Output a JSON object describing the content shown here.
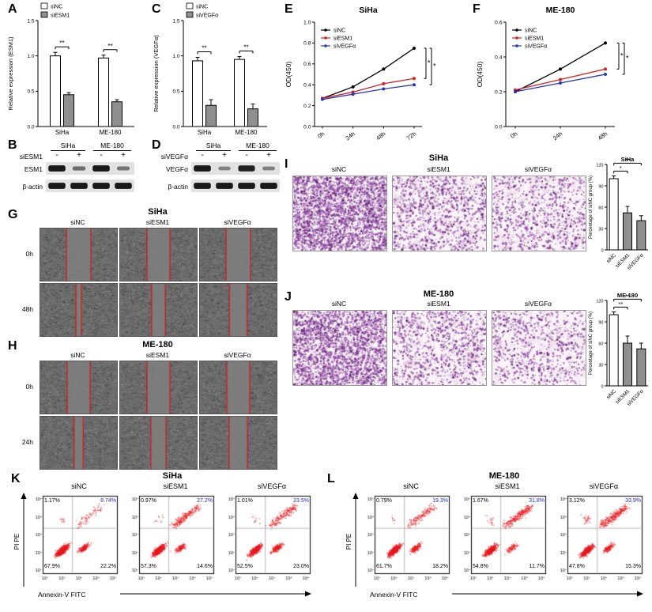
{
  "panels": {
    "A": {
      "letter": "A",
      "ylabel": "Relative expression (ESM1)",
      "ylim": [
        0,
        1.5
      ],
      "yticks": [
        "0.0",
        "0.5",
        "1.0",
        "1.5"
      ],
      "categories": [
        "SiHa",
        "ME-180"
      ],
      "legend": [
        "siNC",
        "siESM1"
      ],
      "series": [
        {
          "name": "siNC",
          "fill": "#ffffff",
          "values": [
            1.0,
            0.97
          ],
          "errors": [
            0.05,
            0.04
          ]
        },
        {
          "name": "siESM1",
          "fill": "#8f8f8f",
          "values": [
            0.45,
            0.35
          ],
          "errors": [
            0.03,
            0.03
          ]
        }
      ],
      "sig": [
        "**",
        "**"
      ]
    },
    "B": {
      "letter": "B",
      "treatment": "siESM1",
      "cells": [
        "SiHa",
        "ME-180"
      ],
      "lanes": [
        "-",
        "+",
        "-",
        "+"
      ],
      "rows": [
        "ESM1",
        "β-actin"
      ],
      "bands": [
        [
          0.95,
          0.4,
          0.95,
          0.35
        ],
        [
          0.95,
          0.95,
          0.95,
          0.95
        ]
      ]
    },
    "C": {
      "letter": "C",
      "ylabel": "Relative expression (VEGFα)",
      "ylim": [
        0,
        1.5
      ],
      "yticks": [
        "0.0",
        "0.5",
        "1.0",
        "1.5"
      ],
      "categories": [
        "SiHa",
        "ME-180"
      ],
      "legend": [
        "siNC",
        "siVEGFα"
      ],
      "series": [
        {
          "name": "siNC",
          "fill": "#ffffff",
          "values": [
            0.93,
            0.95
          ],
          "errors": [
            0.05,
            0.04
          ]
        },
        {
          "name": "siVEGFα",
          "fill": "#8f8f8f",
          "values": [
            0.3,
            0.25
          ],
          "errors": [
            0.08,
            0.07
          ]
        }
      ],
      "sig": [
        "**",
        "**"
      ]
    },
    "D": {
      "letter": "D",
      "treatment": "siVEGFα",
      "cells": [
        "SiHa",
        "ME-180"
      ],
      "lanes": [
        "-",
        "+",
        "-",
        "+"
      ],
      "rows": [
        "VEGFα",
        "β-actin"
      ],
      "bands": [
        [
          0.95,
          0.28,
          0.9,
          0.3
        ],
        [
          0.95,
          0.95,
          0.95,
          0.95
        ]
      ]
    },
    "E": {
      "letter": "E",
      "title": "SiHa",
      "ylabel": "OD(450)",
      "ylim": [
        0,
        1.0
      ],
      "yticks": [
        "0.0",
        "0.2",
        "0.4",
        "0.6",
        "0.8",
        "1.0"
      ],
      "x": [
        "0h",
        "24h",
        "48h",
        "72h"
      ],
      "series": [
        {
          "name": "siNC",
          "color": "#000000",
          "values": [
            0.27,
            0.38,
            0.55,
            0.75
          ]
        },
        {
          "name": "siESM1",
          "color": "#d42020",
          "values": [
            0.27,
            0.33,
            0.41,
            0.46
          ]
        },
        {
          "name": "siVEGFα",
          "color": "#2438b8",
          "values": [
            0.26,
            0.31,
            0.36,
            0.4
          ]
        }
      ],
      "sig": [
        "*",
        "*"
      ]
    },
    "F": {
      "letter": "F",
      "title": "ME-180",
      "ylabel": "OD(450)",
      "ylim": [
        0,
        0.6
      ],
      "yticks": [
        "0.0",
        "0.2",
        "0.4",
        "0.6"
      ],
      "x": [
        "0h",
        "24h",
        "48h"
      ],
      "series": [
        {
          "name": "siNC",
          "color": "#000000",
          "values": [
            0.2,
            0.33,
            0.48
          ]
        },
        {
          "name": "siESM1",
          "color": "#d42020",
          "values": [
            0.21,
            0.27,
            0.33
          ]
        },
        {
          "name": "siVEGFα",
          "color": "#2438b8",
          "values": [
            0.2,
            0.25,
            0.3
          ]
        }
      ],
      "sig": [
        "*",
        "*"
      ]
    },
    "G": {
      "letter": "G",
      "title": "SiHa",
      "columns": [
        "siNC",
        "siESM1",
        "siVEGFα"
      ],
      "rows": [
        "0h",
        "48h"
      ],
      "gaps": [
        [
          0.32,
          0.3,
          0.32
        ],
        [
          0.07,
          0.18,
          0.23
        ]
      ]
    },
    "H": {
      "letter": "H",
      "title": "ME-180",
      "columns": [
        "siNC",
        "siESM1",
        "siVEGFα"
      ],
      "rows": [
        "0h",
        "24h"
      ],
      "gaps": [
        [
          0.3,
          0.3,
          0.3
        ],
        [
          0.12,
          0.2,
          0.24
        ]
      ]
    },
    "I": {
      "letter": "I",
      "title": "SiHa",
      "columns": [
        "siNC",
        "siESM1",
        "siVEGFα"
      ],
      "densities": [
        1.15,
        0.45,
        0.36
      ],
      "chart": {
        "title": "SiHa",
        "ylabel": "Percentage of siNC group (%)",
        "ylim": [
          0,
          120
        ],
        "yticks": [
          "0",
          "30",
          "60",
          "90",
          "120"
        ],
        "categories": [
          "siNC",
          "siESM1",
          "siVEGFα"
        ],
        "series": [
          {
            "name": "pct",
            "fills": [
              "#ffffff",
              "#8f8f8f",
              "#8f8f8f"
            ],
            "fill": "#8f8f8f",
            "values": [
              100,
              52,
              41
            ],
            "errors": [
              4,
              9,
              7
            ]
          }
        ],
        "sig": [
          [
            0,
            1,
            "*"
          ],
          [
            0,
            2,
            "**"
          ]
        ]
      }
    },
    "J": {
      "letter": "J",
      "title": "ME-180",
      "columns": [
        "siNC",
        "siESM1",
        "siVEGFα"
      ],
      "densities": [
        1.0,
        0.42,
        0.34
      ],
      "chart": {
        "title": "ME-180",
        "ylabel": "Percentage of siNC group (%)",
        "ylim": [
          0,
          120
        ],
        "yticks": [
          "0",
          "30",
          "60",
          "90",
          "120"
        ],
        "categories": [
          "siNC",
          "siESM1",
          "siVEGFα"
        ],
        "series": [
          {
            "name": "pct",
            "fills": [
              "#ffffff",
              "#8f8f8f",
              "#8f8f8f"
            ],
            "fill": "#8f8f8f",
            "values": [
              100,
              60,
              52
            ],
            "errors": [
              4,
              10,
              8
            ]
          }
        ],
        "sig": [
          [
            0,
            1,
            "**"
          ],
          [
            0,
            2,
            "**"
          ]
        ]
      }
    },
    "K": {
      "letter": "K",
      "title": "SiHa",
      "ylabel": "PI PE",
      "xlabel": "Annexin-V  FITC",
      "ticks": [
        "10⁰",
        "10¹",
        "10²",
        "10³",
        "10⁴"
      ],
      "plots": [
        {
          "name": "siNC",
          "ul": "1.17%",
          "ur": "8.74%",
          "ll": "67.9%",
          "lr": "22.2%"
        },
        {
          "name": "siESM1",
          "ul": "0.97%",
          "ur": "27.2%",
          "ll": "57.3%",
          "lr": "14.6%"
        },
        {
          "name": "siVEGFα",
          "ul": "1.01%",
          "ur": "23.5%",
          "ll": "52.5%",
          "lr": "23.0%"
        }
      ]
    },
    "L": {
      "letter": "L",
      "title": "ME-180",
      "ylabel": "PI PE",
      "xlabel": "Annexin-V  FITC",
      "ticks": [
        "10⁰",
        "10¹",
        "10²",
        "10³",
        "10⁴"
      ],
      "plots": [
        {
          "name": "siNC",
          "ul": "0.79%",
          "ur": "19.3%",
          "ll": "61.7%",
          "lr": "18.2%"
        },
        {
          "name": "siESM1",
          "ul": "1.67%",
          "ur": "31,8%",
          "ll": "54.8%",
          "lr": "11.7%"
        },
        {
          "name": "siVEGFα",
          "ul": "3.12%",
          "ur": "33,9%",
          "ll": "47.8%",
          "lr": "15.3%"
        }
      ]
    }
  }
}
